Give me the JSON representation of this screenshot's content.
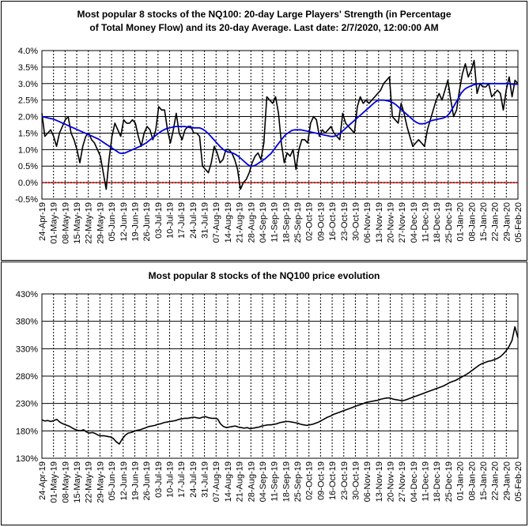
{
  "chart_data": [
    {
      "type": "line",
      "title_lines": [
        "Most popular 8 stocks of the NQ100: 20-day Large Players' Strength (in Percentage",
        "of Total Money Flow) and its 20-day Average. Last date: 2/7/2020, 12:00:00 AM"
      ],
      "ylim": [
        -0.5,
        4.0
      ],
      "yticks": [
        "-0.5%",
        "0.0%",
        "0.5%",
        "1.0%",
        "1.5%",
        "2.0%",
        "2.5%",
        "3.0%",
        "3.5%",
        "4.0%"
      ],
      "ytick_values": [
        -0.5,
        0.0,
        0.5,
        1.0,
        1.5,
        2.0,
        2.5,
        3.0,
        3.5,
        4.0
      ],
      "x_tick_labels": [
        "24-Apr-19",
        "01-May-19",
        "08-May-19",
        "15-May-19",
        "22-May-19",
        "29-May-19",
        "05-Jun-19",
        "12-Jun-19",
        "19-Jun-19",
        "26-Jun-19",
        "03-Jul-19",
        "10-Jul-19",
        "17-Jul-19",
        "24-Jul-19",
        "31-Jul-19",
        "07-Aug-19",
        "14-Aug-19",
        "21-Aug-19",
        "28-Aug-19",
        "04-Sep-19",
        "11-Sep-19",
        "18-Sep-19",
        "25-Sep-19",
        "02-Oct-19",
        "09-Oct-19",
        "16-Oct-19",
        "23-Oct-19",
        "30-Oct-19",
        "06-Nov-19",
        "13-Nov-19",
        "20-Nov-19",
        "27-Nov-19",
        "04-Dec-19",
        "11-Dec-19",
        "18-Dec-19",
        "25-Dec-19",
        "01-Jan-20",
        "08-Jan-20",
        "15-Jan-20",
        "22-Jan-20",
        "29-Jan-20",
        "05-Feb-20"
      ],
      "x_tick_labels_top": [
        "24-Apr-19",
        "01-May-19",
        "08-May-19",
        "15-May-19",
        "22-May-19",
        "29-May-19",
        "05-Jun-19",
        "12-Jun-19",
        "19-Jun-19",
        "26-Jun-19",
        "03-Jul-19",
        "10-Jul-19",
        "17-Jul-19",
        "24-Jul-19",
        "31-Jul-19",
        "07-Aug-19",
        "14-Aug-19",
        "21-Aug-19",
        "28-Aug-19",
        "04-Sep-19",
        "11-Sep-19",
        "18-Sep-19",
        "25-Sep-19",
        "02-Oct-19",
        "09-Oct-19",
        "16-Oct-19",
        "23-Oct-19",
        "30-Oct-19",
        "06-Nov-19",
        "13-Nov-19",
        "20-Nov-19",
        "27-Nov-19",
        "04-Dec-19",
        "11-Dec-19",
        "18-Dec-19",
        "25-Dec-19",
        "01-Jan-20",
        "08-Jan-20",
        "15-Jan-20",
        "22-Jan-20",
        "29-Jan-20",
        "05-Feb-20"
      ],
      "series": [
        {
          "color": "#000000",
          "values": [
            2.1,
            1.4,
            1.5,
            1.6,
            1.4,
            1.1,
            1.5,
            1.7,
            1.9,
            2.0,
            1.5,
            1.3,
            1.0,
            0.6,
            1.1,
            1.4,
            1.5,
            1.3,
            1.2,
            1.0,
            0.8,
            0.3,
            -0.2,
            0.7,
            1.4,
            1.8,
            1.6,
            1.4,
            1.9,
            1.8,
            1.8,
            1.9,
            1.8,
            1.4,
            1.1,
            1.5,
            1.7,
            1.6,
            1.3,
            1.6,
            2.3,
            2.2,
            2.2,
            1.6,
            1.2,
            1.6,
            2.1,
            1.5,
            1.3,
            1.6,
            1.7,
            1.7,
            1.5,
            1.5,
            1.4,
            0.5,
            0.4,
            0.3,
            0.6,
            1.1,
            0.9,
            0.6,
            0.7,
            1.0,
            1.0,
            0.9,
            0.7,
            0.4,
            -0.2,
            0.0,
            0.1,
            0.3,
            0.6,
            0.8,
            0.9,
            0.7,
            1.2,
            2.6,
            2.5,
            2.4,
            2.6,
            2.1,
            1.2,
            0.6,
            0.9,
            0.8,
            1.0,
            0.4,
            1.0,
            1.3,
            1.3,
            1.2,
            1.8,
            2.0,
            1.9,
            1.4,
            1.6,
            1.5,
            1.6,
            1.7,
            1.5,
            1.4,
            1.3,
            2.1,
            1.8,
            1.7,
            1.6,
            1.5,
            2.3,
            2.6,
            2.4,
            2.5,
            2.4,
            2.5,
            2.6,
            2.7,
            2.8,
            3.0,
            3.1,
            3.2,
            2.0,
            1.9,
            1.8,
            2.4,
            2.1,
            1.7,
            1.4,
            1.1,
            1.2,
            1.3,
            1.2,
            1.1,
            1.6,
            1.9,
            2.2,
            2.5,
            2.7,
            2.5,
            2.8,
            3.1,
            2.5,
            2.0,
            2.2,
            2.8,
            3.3,
            3.6,
            3.2,
            3.4,
            3.7,
            2.7,
            3.0,
            2.9,
            2.9,
            3.0,
            2.6,
            2.7,
            2.8,
            2.7,
            2.2,
            2.8,
            3.2,
            2.6,
            3.1,
            3.0
          ]
        },
        {
          "color": "#0000dd",
          "values": [
            2.0,
            1.98,
            1.96,
            1.94,
            1.92,
            1.88,
            1.84,
            1.8,
            1.76,
            1.72,
            1.68,
            1.64,
            1.6,
            1.56,
            1.52,
            1.48,
            1.44,
            1.4,
            1.36,
            1.32,
            1.26,
            1.2,
            1.14,
            1.08,
            1.02,
            0.96,
            0.9,
            0.88,
            0.9,
            0.94,
            0.98,
            1.02,
            1.06,
            1.1,
            1.15,
            1.2,
            1.27,
            1.34,
            1.41,
            1.48,
            1.55,
            1.6,
            1.64,
            1.66,
            1.68,
            1.7,
            1.7,
            1.7,
            1.7,
            1.68,
            1.66,
            1.66,
            1.66,
            1.66,
            1.62,
            1.56,
            1.48,
            1.38,
            1.28,
            1.18,
            1.08,
            1.0,
            0.95,
            0.92,
            0.9,
            0.86,
            0.8,
            0.72,
            0.64,
            0.56,
            0.5,
            0.5,
            0.54,
            0.6,
            0.66,
            0.72,
            0.8,
            0.88,
            1.0,
            1.12,
            1.24,
            1.36,
            1.46,
            1.52,
            1.58,
            1.6,
            1.6,
            1.6,
            1.58,
            1.56,
            1.54,
            1.52,
            1.5,
            1.48,
            1.46,
            1.44,
            1.42,
            1.4,
            1.4,
            1.42,
            1.48,
            1.56,
            1.64,
            1.72,
            1.8,
            1.88,
            1.96,
            2.04,
            2.12,
            2.2,
            2.28,
            2.36,
            2.44,
            2.5,
            2.5,
            2.5,
            2.48,
            2.46,
            2.42,
            2.36,
            2.28,
            2.2,
            2.12,
            2.04,
            1.96,
            1.88,
            1.82,
            1.78,
            1.78,
            1.8,
            1.84,
            1.88,
            1.9,
            1.92,
            1.94,
            1.96,
            2.0,
            2.1,
            2.24,
            2.4,
            2.56,
            2.72,
            2.82,
            2.88,
            2.92,
            2.96,
            2.98,
            3.0,
            3.0,
            3.0,
            3.0,
            3.0,
            3.0,
            3.0,
            3.0,
            3.0,
            3.0,
            3.0,
            2.98,
            2.98,
            2.98
          ]
        }
      ],
      "reference_line": {
        "value": 0.0,
        "color": "#dd0000"
      }
    },
    {
      "type": "line",
      "title_lines": [
        "Most popular 8 stocks of the NQ100 price evolution"
      ],
      "ylim": [
        130,
        430
      ],
      "yticks": [
        "130%",
        "180%",
        "230%",
        "280%",
        "330%",
        "380%",
        "430%"
      ],
      "ytick_values": [
        130,
        180,
        230,
        280,
        330,
        380,
        430
      ],
      "x_tick_labels": [
        "24-Apr-19",
        "01-May-19",
        "08-May-19",
        "15-May-19",
        "22-May-19",
        "29-May-19",
        "05-Jun-19",
        "12-Jun-19",
        "19-Jun-19",
        "26-Jun-19",
        "03-Jul-19",
        "10-Jul-19",
        "17-Jul-19",
        "24-Jul-19",
        "31-Jul-19",
        "07-Aug-19",
        "14-Aug-19",
        "21-Aug-19",
        "28-Aug-19",
        "04-Sep-19",
        "11-Sep-19",
        "18-Sep-19",
        "25-Sep-19",
        "02-Oct-19",
        "09-Oct-19",
        "16-Oct-19",
        "23-Oct-19",
        "30-Oct-19",
        "06-Nov-19",
        "13-Nov-19",
        "20-Nov-19",
        "27-Nov-19",
        "04-Dec-19",
        "11-Dec-19",
        "18-Dec-19",
        "25-Dec-19",
        "01-Jan-20",
        "08-Jan-20",
        "15-Jan-20",
        "22-Jan-20",
        "29-Jan-20",
        "05-Feb-20"
      ],
      "series": [
        {
          "color": "#000000",
          "values": [
            200,
            198,
            199,
            197,
            199,
            201,
            196,
            193,
            191,
            189,
            186,
            183,
            181,
            180,
            182,
            178,
            176,
            177,
            175,
            172,
            171,
            171,
            170,
            169,
            166,
            160,
            156,
            165,
            172,
            176,
            177,
            179,
            181,
            182,
            184,
            186,
            188,
            189,
            190,
            192,
            193,
            195,
            196,
            197,
            198,
            199,
            201,
            202,
            203,
            203,
            204,
            205,
            204,
            203,
            205,
            206,
            204,
            203,
            203,
            202,
            193,
            188,
            186,
            187,
            188,
            189,
            187,
            186,
            185,
            186,
            184,
            185,
            186,
            187,
            189,
            190,
            191,
            191,
            192,
            193,
            195,
            196,
            197,
            197,
            196,
            195,
            194,
            192,
            191,
            190,
            191,
            192,
            194,
            196,
            199,
            202,
            205,
            207,
            210,
            212,
            214,
            216,
            218,
            220,
            222,
            224,
            226,
            228,
            230,
            232,
            233,
            234,
            235,
            236,
            238,
            239,
            240,
            240,
            238,
            237,
            236,
            235,
            236,
            238,
            240,
            242,
            244,
            246,
            248,
            250,
            252,
            254,
            256,
            258,
            260,
            262,
            265,
            268,
            270,
            272,
            275,
            278,
            281,
            284,
            288,
            292,
            296,
            300,
            303,
            305,
            307,
            308,
            310,
            312,
            315,
            320,
            326,
            334,
            345,
            370,
            350
          ]
        }
      ]
    }
  ]
}
